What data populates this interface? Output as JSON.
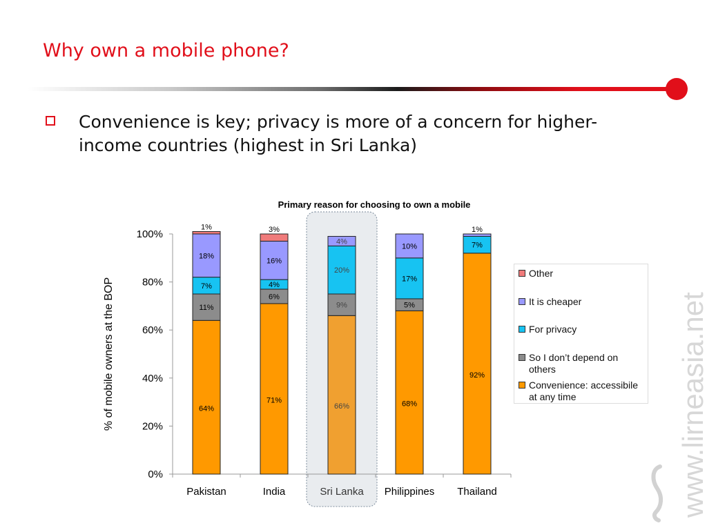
{
  "slide": {
    "title": "Why own a mobile phone?",
    "bullet": "Convenience is key; privacy is more of a concern for higher-income countries (highest in Sri Lanka)",
    "watermark": "www.lirneasia.net",
    "colors": {
      "accent": "#e10f1a"
    }
  },
  "chart_data": {
    "type": "bar",
    "stacked": true,
    "title": "Primary reason for choosing to own a mobile",
    "xlabel": "",
    "ylabel": "% of mobile owners at the BOP",
    "ylim": [
      0,
      100
    ],
    "yticks": [
      "0%",
      "20%",
      "40%",
      "60%",
      "80%",
      "100%"
    ],
    "categories": [
      "Pakistan",
      "India",
      "Sri Lanka",
      "Philippines",
      "Thailand"
    ],
    "highlighted_category": "Sri Lanka",
    "series": [
      {
        "name": "Convenience: accessibile at any time",
        "color": "#ff9900",
        "values": [
          64,
          71,
          66,
          68,
          92
        ],
        "labels": [
          "64%",
          "71%",
          "66%",
          "68%",
          "92%"
        ]
      },
      {
        "name": "So I don’t depend on others",
        "color": "#8c8c8c",
        "values": [
          11,
          6,
          9,
          5,
          0
        ],
        "labels": [
          "11%",
          "6%",
          "9%",
          "5%",
          ""
        ]
      },
      {
        "name": "For privacy",
        "color": "#17c3f2",
        "values": [
          7,
          4,
          20,
          17,
          7
        ],
        "labels": [
          "7%",
          "4%",
          "20%",
          "17%",
          "7%"
        ]
      },
      {
        "name": "It is cheaper",
        "color": "#9999ff",
        "values": [
          18,
          16,
          4,
          10,
          1
        ],
        "labels": [
          "18%",
          "16%",
          "4%",
          "10%",
          "1%"
        ]
      },
      {
        "name": "Other",
        "color": "#f07b7b",
        "values": [
          1,
          3,
          0,
          0,
          0
        ],
        "labels": [
          "1%",
          "3%",
          "",
          "",
          ""
        ]
      }
    ],
    "legend": {
      "position": "right",
      "entries": [
        "Other",
        "It is cheaper",
        "For privacy",
        "So I don’t depend on others",
        "Convenience: accessibile at any time"
      ]
    },
    "grid": false
  }
}
